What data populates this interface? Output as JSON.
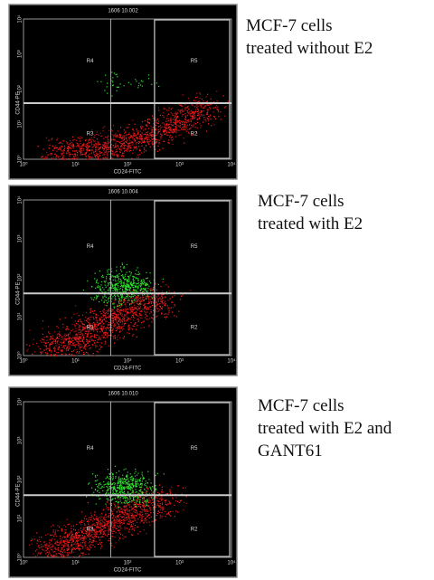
{
  "panels": [
    {
      "file": "1606 10.002",
      "x_axis": "CD24-FITC",
      "y_axis": "CD44-PE",
      "x_ticks": [
        "10⁰",
        "10¹",
        "10²",
        "10³",
        "10⁴"
      ],
      "y_ticks": [
        "10⁰",
        "10¹",
        "10²",
        "10³",
        "10⁴"
      ],
      "regions": [
        "R4",
        "R5",
        "R3",
        "R2"
      ],
      "caption": [
        "MCF-7 cells",
        "treated without E2"
      ]
    },
    {
      "file": "1606 10.004",
      "x_axis": "CD24-FITC",
      "y_axis": "CD44-PE",
      "x_ticks": [
        "10⁰",
        "10¹",
        "10²",
        "10³",
        "10⁴"
      ],
      "y_ticks": [
        "10⁰",
        "10¹",
        "10²",
        "10³",
        "10⁴"
      ],
      "regions": [
        "R4",
        "R5",
        "R3",
        "R2"
      ],
      "caption": [
        "MCF-7 cells",
        "treated with E2"
      ]
    },
    {
      "file": "1606 10.010",
      "x_axis": "CD24-FITC",
      "y_axis": "CD44-PE",
      "x_ticks": [
        "10⁰",
        "10¹",
        "10²",
        "10³",
        "10⁴"
      ],
      "y_ticks": [
        "10⁰",
        "10¹",
        "10²",
        "10³",
        "10⁴"
      ],
      "regions": [
        "R4",
        "R5",
        "R3",
        "R2"
      ],
      "caption": [
        "MCF-7 cells",
        "treated with E2 and",
        "GANT61"
      ]
    }
  ]
}
